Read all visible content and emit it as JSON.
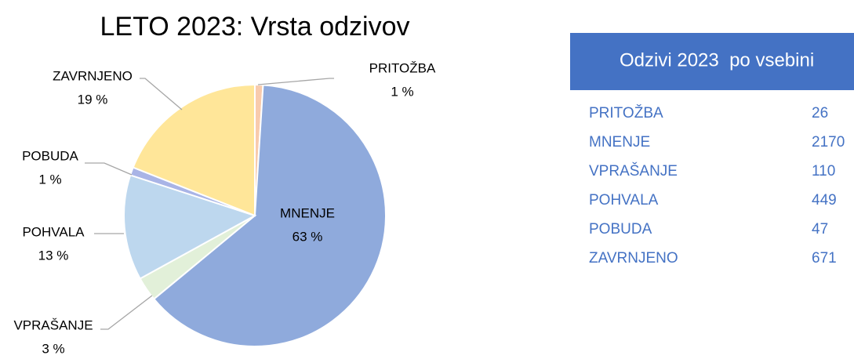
{
  "chart_data": {
    "type": "pie",
    "title": "LETO 2023: Vrsta odzivov",
    "categories": [
      "PRITOŽBA",
      "MNENJE",
      "VPRAŠANJE",
      "POHVALA",
      "POBUDA",
      "ZAVRNJENO"
    ],
    "values": [
      1,
      63,
      3,
      13,
      1,
      19
    ],
    "value_labels": [
      "1 %",
      "63 %",
      "3 %",
      "13 %",
      "1 %",
      "19 %"
    ],
    "colors": [
      "#f8cbad",
      "#8faadc",
      "#e2f0d9",
      "#bdd7ee",
      "#a9b4e6",
      "#ffe699"
    ]
  },
  "table": {
    "header": "Odzivi 2023  po vsebini",
    "rows": [
      [
        "PRITOŽBA",
        26
      ],
      [
        "MNENJE",
        2170
      ],
      [
        "VPRAŠANJE",
        110
      ],
      [
        "POHVALA",
        449
      ],
      [
        "POBUDA",
        47
      ],
      [
        "ZAVRNJENO",
        671
      ]
    ]
  }
}
